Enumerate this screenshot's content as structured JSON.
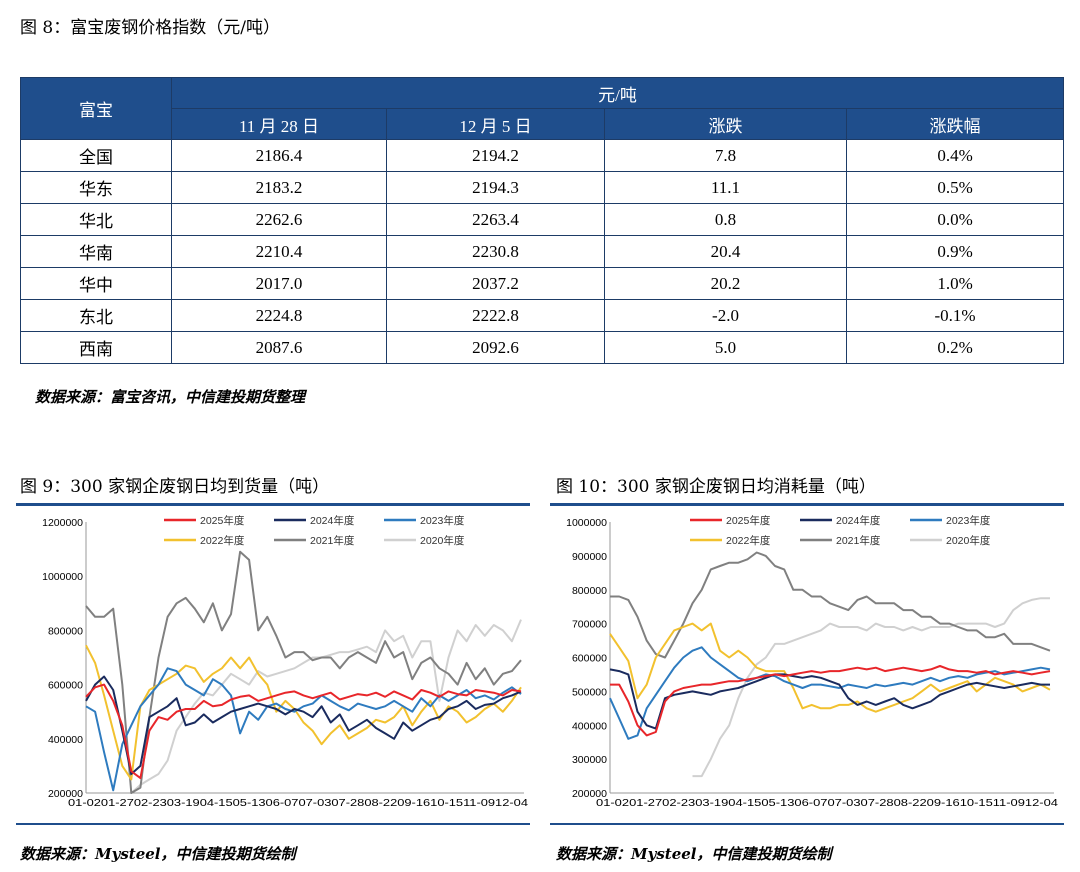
{
  "fig8": {
    "title": "图 8：富宝废钢价格指数（元/吨）",
    "header_group": "富宝",
    "header_unit": "元/吨",
    "columns": [
      "11 月 28 日",
      "12 月 5 日",
      "涨跌",
      "涨跌幅"
    ],
    "rows": [
      {
        "region": "全国",
        "v1": "2186.4",
        "v2": "2194.2",
        "chg": "7.8",
        "pct": "0.4%"
      },
      {
        "region": "华东",
        "v1": "2183.2",
        "v2": "2194.3",
        "chg": "11.1",
        "pct": "0.5%"
      },
      {
        "region": "华北",
        "v1": "2262.6",
        "v2": "2263.4",
        "chg": "0.8",
        "pct": "0.0%"
      },
      {
        "region": "华南",
        "v1": "2210.4",
        "v2": "2230.8",
        "chg": "20.4",
        "pct": "0.9%"
      },
      {
        "region": "华中",
        "v1": "2017.0",
        "v2": "2037.2",
        "chg": "20.2",
        "pct": "1.0%"
      },
      {
        "region": "东北",
        "v1": "2224.8",
        "v2": "2222.8",
        "chg": "-2.0",
        "pct": "-0.1%"
      },
      {
        "region": "西南",
        "v1": "2087.6",
        "v2": "2092.6",
        "chg": "5.0",
        "pct": "0.2%"
      }
    ],
    "source": "数据来源：富宝咨讯，中信建投期货整理"
  },
  "fig9": {
    "title": "图 9：300 家钢企废钢日均到货量（吨）",
    "source": "数据来源：Mysteel，中信建投期货绘制"
  },
  "fig10": {
    "title": "图 10：300 家钢企废钢日均消耗量（吨）",
    "source": "数据来源：Mysteel，中信建投期货绘制"
  },
  "colors": {
    "2025年度": "#e8262a",
    "2024年度": "#1a2b5e",
    "2023年度": "#2e7bbf",
    "2022年度": "#f2c12e",
    "2021年度": "#808080",
    "2020年度": "#d0d0d0"
  },
  "chart_data": [
    {
      "type": "line",
      "title": "300 家钢企废钢日均到货量（吨）",
      "x_tick_label": "01-0201-2702-2303-1904-1505-1306-0707-0307-2808-2209-1610-1511-0912-04",
      "ylim": [
        200000,
        1200000
      ],
      "yticks": [
        "1200000",
        "1000000",
        "800000",
        "600000",
        "400000",
        "200000"
      ],
      "ytick_values": [
        1200000,
        1000000,
        800000,
        600000,
        400000,
        200000
      ],
      "n_points": 49,
      "series": [
        {
          "name": "2025年度",
          "values": [
            555000,
            590000,
            600000,
            540000,
            450000,
            280000,
            255000,
            430000,
            480000,
            470000,
            500000,
            510000,
            510000,
            540000,
            520000,
            525000,
            545000,
            555000,
            560000,
            540000,
            550000,
            560000,
            570000,
            575000,
            560000,
            550000,
            560000,
            570000,
            545000,
            555000,
            565000,
            560000,
            570000,
            555000,
            575000,
            560000,
            545000,
            580000,
            570000,
            555000,
            575000,
            565000,
            560000,
            580000,
            575000,
            570000,
            560000,
            580000,
            575000
          ]
        },
        {
          "name": "2024年度",
          "values": [
            540000,
            600000,
            630000,
            580000,
            430000,
            270000,
            300000,
            480000,
            500000,
            520000,
            550000,
            450000,
            460000,
            490000,
            460000,
            480000,
            500000,
            510000,
            520000,
            530000,
            520000,
            510000,
            490000,
            510000,
            500000,
            480000,
            520000,
            460000,
            490000,
            430000,
            450000,
            470000,
            440000,
            420000,
            400000,
            460000,
            430000,
            450000,
            470000,
            480000,
            510000,
            520000,
            540000,
            510000,
            525000,
            530000,
            550000,
            560000,
            575000
          ]
        },
        {
          "name": "2023年度",
          "values": [
            520000,
            500000,
            350000,
            210000,
            380000,
            450000,
            520000,
            560000,
            600000,
            660000,
            650000,
            600000,
            580000,
            560000,
            620000,
            600000,
            560000,
            420000,
            500000,
            470000,
            520000,
            530000,
            510000,
            500000,
            520000,
            530000,
            560000,
            540000,
            520000,
            505000,
            530000,
            520000,
            510000,
            520000,
            540000,
            520000,
            500000,
            550000,
            520000,
            560000,
            540000,
            560000,
            580000,
            550000,
            560000,
            545000,
            570000,
            590000,
            565000
          ]
        },
        {
          "name": "2022年度",
          "values": [
            745000,
            680000,
            560000,
            430000,
            300000,
            250000,
            520000,
            580000,
            600000,
            620000,
            640000,
            670000,
            660000,
            610000,
            640000,
            660000,
            700000,
            660000,
            700000,
            640000,
            600000,
            500000,
            540000,
            510000,
            460000,
            430000,
            380000,
            420000,
            450000,
            400000,
            420000,
            440000,
            470000,
            460000,
            480000,
            520000,
            450000,
            500000,
            540000,
            470000,
            520000,
            500000,
            460000,
            480000,
            510000,
            530000,
            500000,
            540000,
            590000
          ]
        },
        {
          "name": "2021年度",
          "values": [
            890000,
            850000,
            850000,
            880000,
            600000,
            200000,
            220000,
            480000,
            700000,
            850000,
            900000,
            920000,
            880000,
            830000,
            900000,
            800000,
            860000,
            1090000,
            1060000,
            800000,
            850000,
            780000,
            700000,
            720000,
            720000,
            690000,
            700000,
            700000,
            660000,
            700000,
            720000,
            700000,
            680000,
            760000,
            700000,
            720000,
            620000,
            680000,
            700000,
            660000,
            640000,
            600000,
            680000,
            620000,
            660000,
            600000,
            640000,
            650000,
            690000
          ]
        },
        {
          "name": "2020年度",
          "values": [
            null,
            null,
            null,
            null,
            null,
            200000,
            230000,
            250000,
            270000,
            320000,
            430000,
            480000,
            530000,
            570000,
            560000,
            600000,
            640000,
            620000,
            600000,
            650000,
            630000,
            640000,
            650000,
            660000,
            680000,
            700000,
            700000,
            710000,
            720000,
            720000,
            730000,
            740000,
            720000,
            800000,
            760000,
            780000,
            700000,
            760000,
            760000,
            540000,
            700000,
            800000,
            760000,
            820000,
            780000,
            820000,
            800000,
            760000,
            840000
          ]
        }
      ]
    },
    {
      "type": "line",
      "title": "300 家钢企废钢日均消耗量（吨）",
      "x_tick_label": "01-0201-2702-2303-1904-1505-1306-0707-0307-2808-2209-1610-1511-0912-04",
      "ylim": [
        200000,
        1000000
      ],
      "yticks": [
        "1000000",
        "900000",
        "800000",
        "700000",
        "600000",
        "500000",
        "400000",
        "300000",
        "200000"
      ],
      "ytick_values": [
        1000000,
        900000,
        800000,
        700000,
        600000,
        500000,
        400000,
        300000,
        200000
      ],
      "n_points": 49,
      "series": [
        {
          "name": "2025年度",
          "values": [
            520000,
            520000,
            470000,
            400000,
            370000,
            380000,
            470000,
            500000,
            510000,
            515000,
            520000,
            520000,
            525000,
            530000,
            530000,
            535000,
            540000,
            545000,
            550000,
            545000,
            550000,
            555000,
            560000,
            555000,
            560000,
            560000,
            565000,
            570000,
            565000,
            570000,
            560000,
            565000,
            570000,
            565000,
            560000,
            565000,
            575000,
            565000,
            560000,
            560000,
            555000,
            560000,
            550000,
            555000,
            560000,
            555000,
            550000,
            555000,
            560000
          ]
        },
        {
          "name": "2024年度",
          "values": [
            565000,
            560000,
            550000,
            440000,
            400000,
            390000,
            480000,
            490000,
            495000,
            500000,
            495000,
            490000,
            500000,
            505000,
            510000,
            520000,
            530000,
            540000,
            550000,
            550000,
            545000,
            540000,
            545000,
            540000,
            530000,
            520000,
            480000,
            460000,
            470000,
            460000,
            470000,
            480000,
            460000,
            450000,
            460000,
            470000,
            490000,
            500000,
            510000,
            520000,
            525000,
            520000,
            515000,
            510000,
            515000,
            520000,
            525000,
            520000,
            520000
          ]
        },
        {
          "name": "2023年度",
          "values": [
            480000,
            420000,
            360000,
            370000,
            450000,
            490000,
            530000,
            570000,
            600000,
            620000,
            630000,
            600000,
            580000,
            560000,
            540000,
            530000,
            540000,
            550000,
            545000,
            530000,
            520000,
            510000,
            520000,
            520000,
            515000,
            510000,
            520000,
            515000,
            510000,
            520000,
            515000,
            520000,
            525000,
            520000,
            530000,
            540000,
            530000,
            540000,
            545000,
            540000,
            550000,
            555000,
            560000,
            550000,
            555000,
            560000,
            565000,
            570000,
            565000
          ]
        },
        {
          "name": "2022年度",
          "values": [
            670000,
            630000,
            590000,
            480000,
            520000,
            600000,
            640000,
            680000,
            690000,
            700000,
            680000,
            700000,
            620000,
            600000,
            620000,
            600000,
            570000,
            560000,
            560000,
            560000,
            510000,
            450000,
            460000,
            450000,
            450000,
            460000,
            460000,
            470000,
            450000,
            440000,
            450000,
            460000,
            470000,
            480000,
            500000,
            520000,
            500000,
            510000,
            520000,
            530000,
            500000,
            520000,
            540000,
            530000,
            520000,
            500000,
            510000,
            520000,
            505000
          ]
        },
        {
          "name": "2021年度",
          "values": [
            780000,
            780000,
            770000,
            720000,
            650000,
            610000,
            600000,
            650000,
            700000,
            760000,
            800000,
            860000,
            870000,
            880000,
            880000,
            890000,
            910000,
            900000,
            870000,
            860000,
            800000,
            800000,
            780000,
            780000,
            760000,
            750000,
            740000,
            770000,
            780000,
            760000,
            760000,
            760000,
            740000,
            740000,
            720000,
            720000,
            700000,
            700000,
            690000,
            680000,
            680000,
            660000,
            660000,
            670000,
            640000,
            640000,
            640000,
            630000,
            620000
          ]
        },
        {
          "name": "2020年度",
          "values": [
            null,
            null,
            null,
            null,
            null,
            null,
            null,
            null,
            null,
            250000,
            250000,
            300000,
            360000,
            400000,
            480000,
            540000,
            580000,
            600000,
            640000,
            640000,
            650000,
            660000,
            670000,
            680000,
            700000,
            690000,
            690000,
            690000,
            680000,
            700000,
            690000,
            690000,
            680000,
            690000,
            680000,
            690000,
            690000,
            690000,
            700000,
            700000,
            700000,
            700000,
            690000,
            700000,
            740000,
            760000,
            770000,
            775000,
            775000
          ]
        }
      ]
    }
  ]
}
